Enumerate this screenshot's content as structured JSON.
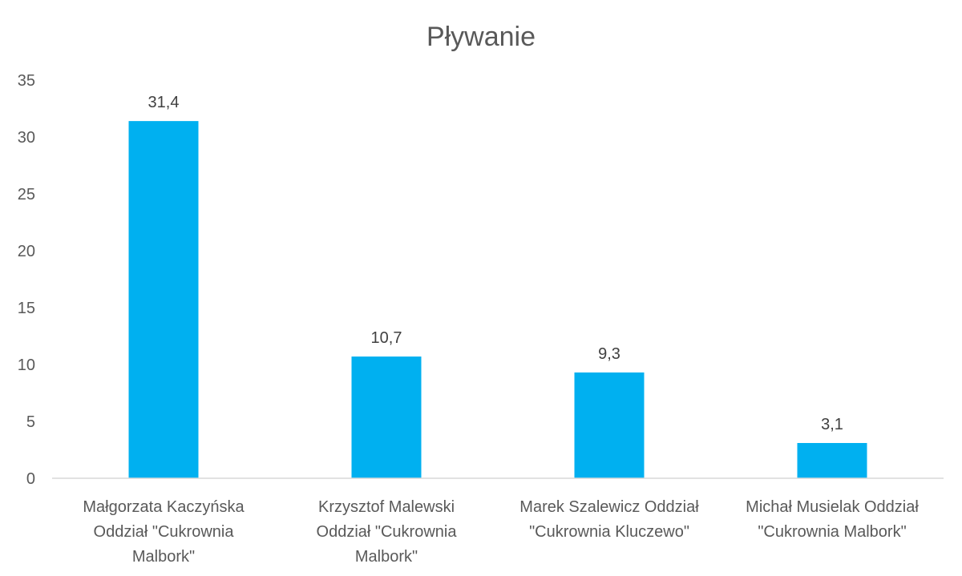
{
  "chart_data": {
    "type": "bar",
    "title": "Pływanie",
    "categories": [
      [
        "Małgorzata Kaczyńska",
        "Oddział \"Cukrownia",
        "Malbork\""
      ],
      [
        "Krzysztof Malewski",
        "Oddział \"Cukrownia",
        "Malbork\""
      ],
      [
        "Marek Szalewicz Oddział",
        "\"Cukrownia Kluczewo\""
      ],
      [
        "Michał Musielak Oddział",
        "\"Cukrownia Malbork\""
      ]
    ],
    "values": [
      31.4,
      10.7,
      9.3,
      3.1
    ],
    "value_labels": [
      "31,4",
      "10,7",
      "9,3",
      "3,1"
    ],
    "ylim": [
      0,
      35
    ],
    "yticks": [
      0,
      5,
      10,
      15,
      20,
      25,
      30,
      35
    ],
    "xlabel": "",
    "ylabel": "",
    "grid": false,
    "legend": "none",
    "colors": {
      "bar": "#00b0f0",
      "axis": "#d9d9d9",
      "text": "#595959",
      "label": "#404040"
    }
  }
}
